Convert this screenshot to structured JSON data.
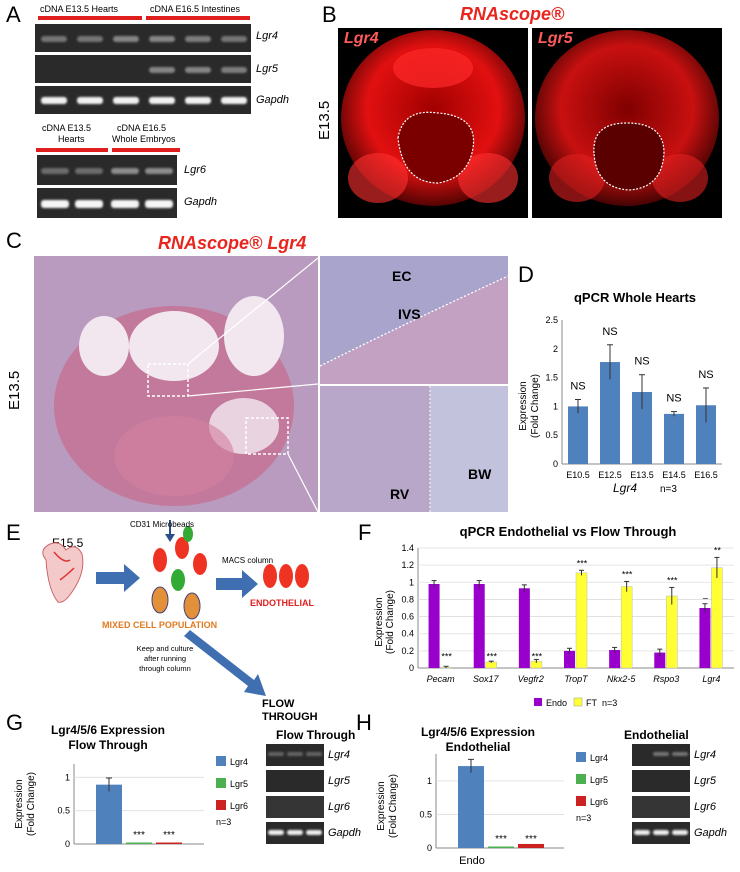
{
  "panels": {
    "A": {
      "label": "A",
      "gel1_top_labels": [
        "cDNA E13.5 Hearts",
        "cDNA E16.5 Intestines"
      ],
      "gel1_genes": [
        "Lgr4",
        "Lgr5",
        "Gapdh"
      ],
      "gel2_top_labels": [
        "cDNA E13.5\nHearts",
        "cDNA E16.5\nWhole Embryos"
      ],
      "gel2_top_line1": [
        "cDNA E13.5",
        "cDNA E16.5"
      ],
      "gel2_top_line2": [
        "Hearts",
        "Whole Embryos"
      ],
      "gel2_genes": [
        "Lgr6",
        "Gapdh"
      ]
    },
    "B": {
      "label": "B",
      "title": "RNAscope®",
      "left_gene": "Lgr4",
      "right_gene": "Lgr5",
      "stage": "E13.5"
    },
    "C": {
      "label": "C",
      "title": "RNAscope® Lgr4",
      "stage": "E13.5",
      "inset_labels": [
        "EC",
        "IVS",
        "RV",
        "BW"
      ]
    },
    "D": {
      "label": "D"
    },
    "E": {
      "label": "E",
      "stage": "E15.5",
      "microbeads": "CD31 Microbeads",
      "macs": "MACS column",
      "endothelial": "ENDOTHELIAL",
      "mixed": "MIXED CELL POPULATION",
      "keep1": "Keep and culture",
      "keep2": "after running",
      "keep3": "through column",
      "flow1": "FLOW",
      "flow2": "THROUGH"
    },
    "F": {
      "label": "F"
    },
    "G": {
      "label": "G",
      "gel_title": "Flow Through",
      "gel_genes": [
        "Lgr4",
        "Lgr5",
        "Lgr6",
        "Gapdh"
      ]
    },
    "H": {
      "label": "H",
      "gel_title": "Endothelial",
      "gel_genes": [
        "Lgr4",
        "Lgr5",
        "Lgr6",
        "Gapdh"
      ]
    }
  },
  "colors": {
    "blue_bar": "#4f81bd",
    "purple": "#9900cc",
    "yellow": "#ffff33",
    "green": "#4caf50",
    "red": "#cc2222"
  },
  "chart_data": [
    {
      "id": "D",
      "type": "bar",
      "title": "qPCR Whole Hearts",
      "ylabel_line1": "Expression",
      "ylabel_line2": "(Fold Change)",
      "xlabel": "Lgr4",
      "note": "n=3",
      "categories": [
        "E10.5",
        "E12.5",
        "E13.5",
        "E14.5",
        "E16.5"
      ],
      "values": [
        1.0,
        1.77,
        1.25,
        0.87,
        1.02
      ],
      "errors": [
        0.12,
        0.3,
        0.3,
        0.04,
        0.3
      ],
      "annotations": [
        "NS",
        "NS",
        "NS",
        "NS",
        "NS"
      ],
      "ylim": [
        0,
        2.5
      ],
      "yticks": [
        "0",
        "0.5",
        "1",
        "1.5",
        "2",
        "2.5"
      ]
    },
    {
      "id": "F",
      "type": "bar",
      "title": "qPCR Endothelial  vs Flow Through",
      "ylabel_line1": "Expression",
      "ylabel_line2": "(Fold Change)",
      "categories": [
        "Pecam",
        "Sox17",
        "Vegfr2",
        "TropT",
        "Nkx2-5",
        "Rspo3",
        "Lgr4"
      ],
      "series": [
        {
          "name": "Endo",
          "values": [
            0.98,
            0.98,
            0.93,
            0.2,
            0.21,
            0.18,
            0.7
          ],
          "errors": [
            0.04,
            0.04,
            0.04,
            0.03,
            0.03,
            0.04,
            0.05
          ]
        },
        {
          "name": "FT",
          "values": [
            0.01,
            0.07,
            0.08,
            1.11,
            0.95,
            0.84,
            1.17
          ],
          "errors": [
            0.01,
            0.01,
            0.02,
            0.03,
            0.06,
            0.1,
            0.12
          ]
        }
      ],
      "significance": [
        "***",
        "***",
        "***",
        "***",
        "***",
        "***",
        "**"
      ],
      "dash_label": "–",
      "note": "n=3",
      "ylim": [
        0,
        1.4
      ],
      "yticks": [
        "0",
        "0.2",
        "0.4",
        "0.6",
        "0.8",
        "1",
        "1.2",
        "1.4"
      ]
    },
    {
      "id": "G",
      "type": "bar",
      "title_line1": "Lgr4/5/6 Expression",
      "title_line2": "Flow Through",
      "ylabel_line1": "Expression",
      "ylabel_line2": "(Fold Change)",
      "series": [
        {
          "name": "Lgr4",
          "value": 0.89,
          "error": 0.1
        },
        {
          "name": "Lgr5",
          "value": 0.01,
          "error": 0
        },
        {
          "name": "Lgr6",
          "value": 0.02,
          "error": 0
        }
      ],
      "significance": [
        "***",
        "***"
      ],
      "note": "n=3",
      "ylim": [
        0,
        1.2
      ],
      "yticks": [
        "0",
        "0.5",
        "1"
      ]
    },
    {
      "id": "H",
      "type": "bar",
      "title_line1": "Lgr4/5/6 Expression",
      "title_line2": "Endothelial",
      "ylabel_line1": "Expression",
      "ylabel_line2": "(Fold Change)",
      "xlabel": "Endo",
      "series": [
        {
          "name": "Lgr4",
          "value": 1.22,
          "error": 0.1
        },
        {
          "name": "Lgr5",
          "value": 0.01,
          "error": 0
        },
        {
          "name": "Lgr6",
          "value": 0.06,
          "error": 0
        }
      ],
      "significance": [
        "***",
        "***"
      ],
      "note": "n=3",
      "ylim": [
        0,
        1.4
      ],
      "yticks": [
        "0",
        "0.5",
        "1"
      ]
    }
  ]
}
